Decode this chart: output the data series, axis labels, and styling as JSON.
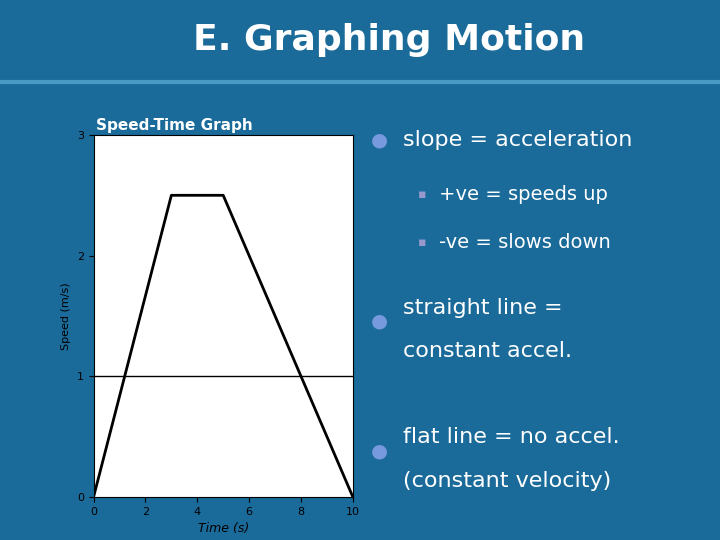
{
  "title": "E. Graphing Motion",
  "subtitle": "Speed-Time Graph",
  "bg_color": "#1a6a9a",
  "title_bar_color": "#1a6a9a",
  "graph_line_x": [
    0,
    3,
    5,
    10
  ],
  "graph_line_y": [
    0,
    2.5,
    2.5,
    0
  ],
  "hline_y": 1,
  "xlabel": "Time (s)",
  "ylabel": "Speed (m/s)",
  "xlim": [
    0,
    10
  ],
  "ylim": [
    0,
    3
  ],
  "xticks": [
    0,
    2,
    4,
    6,
    8,
    10
  ],
  "yticks": [
    0,
    1,
    2,
    3
  ],
  "graph_bg": "#ffffff",
  "line_color": "#000000",
  "hline_color": "#000000",
  "bullet_color": "#7799dd",
  "sub_bullet_color": "#9999cc",
  "text_color": "#ffffff",
  "bullet1": "slope = acceleration",
  "sub1a": "+ve = speeds up",
  "sub1b": "-ve = slows down",
  "bullet2_line1": "straight line =",
  "bullet2_line2": "constant accel.",
  "bullet3_line1": "flat line = no accel.",
  "bullet3_line2": "(constant velocity)"
}
